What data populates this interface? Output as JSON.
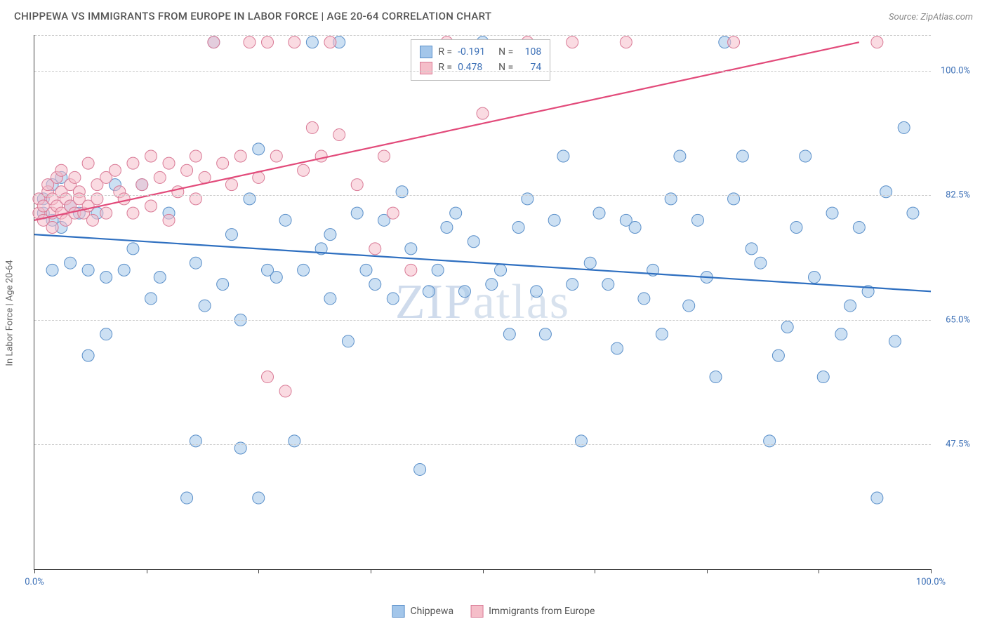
{
  "title": "CHIPPEWA VS IMMIGRANTS FROM EUROPE IN LABOR FORCE | AGE 20-64 CORRELATION CHART",
  "source_label": "Source: ZipAtlas.com",
  "y_axis_title": "In Labor Force | Age 20-64",
  "watermark_part1": "ZIP",
  "watermark_part2": "atlas",
  "chart": {
    "type": "scatter",
    "background_color": "#ffffff",
    "grid_color": "#cccccc",
    "axis_color": "#444444",
    "x_range": [
      0,
      100
    ],
    "y_range": [
      30,
      105
    ],
    "marker_radius": 8.5,
    "y_ticks": [
      {
        "v": 47.5,
        "label": "47.5%"
      },
      {
        "v": 65.0,
        "label": "65.0%"
      },
      {
        "v": 82.5,
        "label": "82.5%"
      },
      {
        "v": 100.0,
        "label": "100.0%"
      }
    ],
    "x_ticks": [
      0,
      12.5,
      25,
      37.5,
      50,
      62.5,
      75,
      87.5,
      100
    ],
    "x_labels": [
      {
        "v": 0,
        "label": "0.0%"
      },
      {
        "v": 100,
        "label": "100.0%"
      }
    ],
    "series": [
      {
        "name": "Chippewa",
        "color_fill": "#a3c6ea",
        "color_stroke": "#5a8fc9",
        "R": "-0.191",
        "N": "108",
        "trend": {
          "x1": 0,
          "y1": 77,
          "x2": 100,
          "y2": 69
        },
        "points": [
          [
            1,
            80
          ],
          [
            1,
            82
          ],
          [
            2,
            79
          ],
          [
            2,
            84
          ],
          [
            2,
            72
          ],
          [
            3,
            85
          ],
          [
            3,
            78
          ],
          [
            4,
            81
          ],
          [
            4,
            73
          ],
          [
            5,
            80
          ],
          [
            6,
            72
          ],
          [
            6,
            60
          ],
          [
            7,
            80
          ],
          [
            8,
            71
          ],
          [
            8,
            63
          ],
          [
            9,
            84
          ],
          [
            10,
            72
          ],
          [
            11,
            75
          ],
          [
            12,
            84
          ],
          [
            13,
            68
          ],
          [
            14,
            71
          ],
          [
            15,
            80
          ],
          [
            17,
            40
          ],
          [
            18,
            73
          ],
          [
            18,
            48
          ],
          [
            19,
            67
          ],
          [
            20,
            104
          ],
          [
            21,
            70
          ],
          [
            22,
            77
          ],
          [
            23,
            65
          ],
          [
            23,
            47
          ],
          [
            24,
            82
          ],
          [
            25,
            89
          ],
          [
            25,
            40
          ],
          [
            26,
            72
          ],
          [
            27,
            71
          ],
          [
            28,
            79
          ],
          [
            29,
            48
          ],
          [
            30,
            72
          ],
          [
            31,
            104
          ],
          [
            32,
            75
          ],
          [
            33,
            68
          ],
          [
            33,
            77
          ],
          [
            34,
            104
          ],
          [
            35,
            62
          ],
          [
            36,
            80
          ],
          [
            37,
            72
          ],
          [
            38,
            70
          ],
          [
            39,
            79
          ],
          [
            40,
            68
          ],
          [
            41,
            83
          ],
          [
            42,
            75
          ],
          [
            43,
            44
          ],
          [
            44,
            69
          ],
          [
            45,
            72
          ],
          [
            46,
            78
          ],
          [
            47,
            80
          ],
          [
            48,
            69
          ],
          [
            49,
            76
          ],
          [
            50,
            104
          ],
          [
            51,
            70
          ],
          [
            52,
            72
          ],
          [
            53,
            63
          ],
          [
            54,
            78
          ],
          [
            55,
            82
          ],
          [
            56,
            69
          ],
          [
            57,
            63
          ],
          [
            58,
            79
          ],
          [
            59,
            88
          ],
          [
            60,
            70
          ],
          [
            61,
            48
          ],
          [
            62,
            73
          ],
          [
            63,
            80
          ],
          [
            64,
            70
          ],
          [
            65,
            61
          ],
          [
            66,
            79
          ],
          [
            67,
            78
          ],
          [
            68,
            68
          ],
          [
            69,
            72
          ],
          [
            70,
            63
          ],
          [
            71,
            82
          ],
          [
            72,
            88
          ],
          [
            73,
            67
          ],
          [
            74,
            79
          ],
          [
            75,
            71
          ],
          [
            76,
            57
          ],
          [
            77,
            104
          ],
          [
            78,
            82
          ],
          [
            79,
            88
          ],
          [
            80,
            75
          ],
          [
            81,
            73
          ],
          [
            82,
            48
          ],
          [
            83,
            60
          ],
          [
            84,
            64
          ],
          [
            85,
            78
          ],
          [
            86,
            88
          ],
          [
            87,
            71
          ],
          [
            88,
            57
          ],
          [
            89,
            80
          ],
          [
            90,
            63
          ],
          [
            91,
            67
          ],
          [
            92,
            78
          ],
          [
            93,
            69
          ],
          [
            94,
            40
          ],
          [
            95,
            83
          ],
          [
            96,
            62
          ],
          [
            97,
            92
          ],
          [
            98,
            80
          ]
        ]
      },
      {
        "name": "Immigrants from Europe",
        "color_fill": "#f5bec9",
        "color_stroke": "#d97a96",
        "R": "0.478",
        "N": "74",
        "trend": {
          "x1": 0,
          "y1": 79,
          "x2": 92,
          "y2": 104
        },
        "points": [
          [
            0.5,
            80
          ],
          [
            0.5,
            82
          ],
          [
            1,
            79
          ],
          [
            1,
            81
          ],
          [
            1.5,
            83
          ],
          [
            1.5,
            84
          ],
          [
            2,
            80
          ],
          [
            2,
            82
          ],
          [
            2,
            78
          ],
          [
            2.5,
            85
          ],
          [
            2.5,
            81
          ],
          [
            3,
            83
          ],
          [
            3,
            80
          ],
          [
            3,
            86
          ],
          [
            3.5,
            79
          ],
          [
            3.5,
            82
          ],
          [
            4,
            84
          ],
          [
            4,
            81
          ],
          [
            4.5,
            80
          ],
          [
            4.5,
            85
          ],
          [
            5,
            83
          ],
          [
            5,
            82
          ],
          [
            5.5,
            80
          ],
          [
            6,
            87
          ],
          [
            6,
            81
          ],
          [
            6.5,
            79
          ],
          [
            7,
            84
          ],
          [
            7,
            82
          ],
          [
            8,
            85
          ],
          [
            8,
            80
          ],
          [
            9,
            86
          ],
          [
            9.5,
            83
          ],
          [
            10,
            82
          ],
          [
            11,
            87
          ],
          [
            11,
            80
          ],
          [
            12,
            84
          ],
          [
            13,
            88
          ],
          [
            13,
            81
          ],
          [
            14,
            85
          ],
          [
            15,
            87
          ],
          [
            15,
            79
          ],
          [
            16,
            83
          ],
          [
            17,
            86
          ],
          [
            18,
            88
          ],
          [
            18,
            82
          ],
          [
            19,
            85
          ],
          [
            20,
            104
          ],
          [
            21,
            87
          ],
          [
            22,
            84
          ],
          [
            23,
            88
          ],
          [
            24,
            104
          ],
          [
            25,
            85
          ],
          [
            26,
            104
          ],
          [
            26,
            57
          ],
          [
            27,
            88
          ],
          [
            28,
            55
          ],
          [
            29,
            104
          ],
          [
            30,
            86
          ],
          [
            31,
            92
          ],
          [
            32,
            88
          ],
          [
            33,
            104
          ],
          [
            34,
            91
          ],
          [
            36,
            84
          ],
          [
            38,
            75
          ],
          [
            39,
            88
          ],
          [
            40,
            80
          ],
          [
            42,
            72
          ],
          [
            46,
            104
          ],
          [
            50,
            94
          ],
          [
            55,
            104
          ],
          [
            60,
            104
          ],
          [
            66,
            104
          ],
          [
            78,
            104
          ],
          [
            94,
            104
          ]
        ]
      }
    ]
  },
  "legend_top": {
    "r_label": "R =",
    "n_label": "N ="
  },
  "bottom_legend": [
    {
      "swatch_fill": "#a3c6ea",
      "swatch_stroke": "#5a8fc9",
      "label": "Chippewa"
    },
    {
      "swatch_fill": "#f5bec9",
      "swatch_stroke": "#d97a96",
      "label": "Immigrants from Europe"
    }
  ]
}
